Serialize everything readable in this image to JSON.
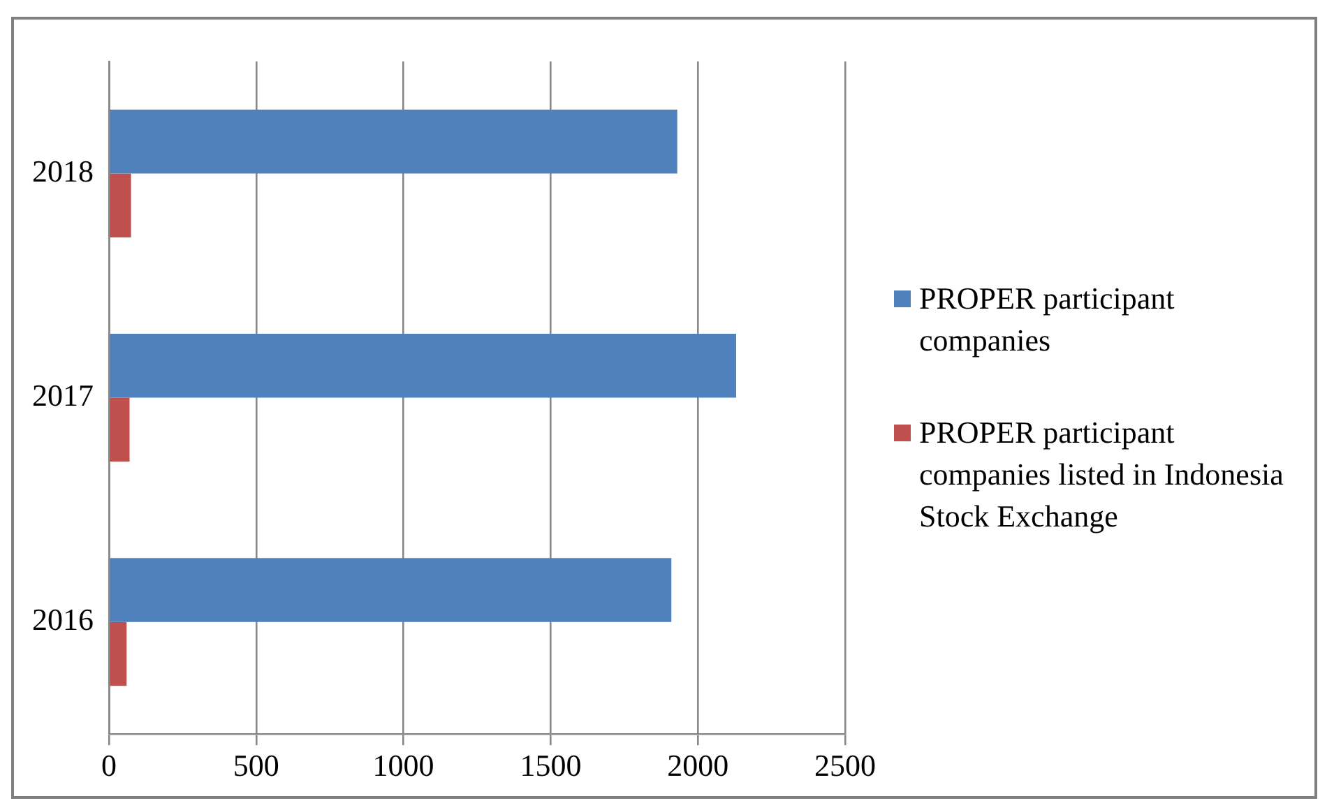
{
  "chart_data": {
    "type": "bar",
    "orientation": "horizontal",
    "categories": [
      "2018",
      "2017",
      "2016"
    ],
    "series": [
      {
        "name": "PROPER participant companies",
        "color": "#4f81bd",
        "values": [
          1930,
          2130,
          1910
        ]
      },
      {
        "name": "PROPER participant companies listed in Indonesia Stock Exchange",
        "color": "#c0504d",
        "values": [
          75,
          70,
          60
        ]
      }
    ],
    "xlim": [
      0,
      2500
    ],
    "xticks": [
      0,
      500,
      1000,
      1500,
      2000,
      2500
    ],
    "grid": "x",
    "legend": "right"
  }
}
